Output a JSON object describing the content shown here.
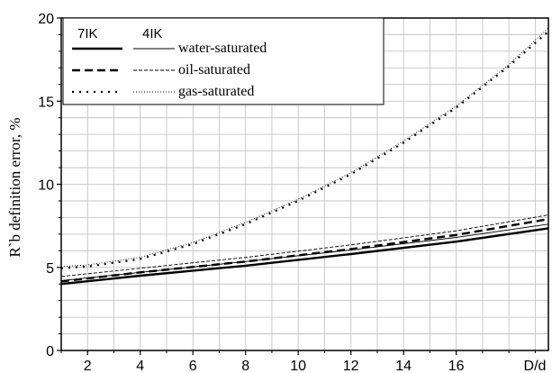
{
  "chart_data": {
    "type": "line",
    "title": "",
    "xlabel": "D/d",
    "ylabel": "R`b definition error, %",
    "xlim": [
      1,
      19.5
    ],
    "ylim": [
      0,
      20
    ],
    "xticks": [
      2,
      4,
      6,
      8,
      10,
      12,
      14,
      16
    ],
    "yticks": [
      0,
      5,
      10,
      15,
      20
    ],
    "grid": true,
    "legend": {
      "placement": "top-left",
      "headers": [
        "7IK",
        "4IK"
      ],
      "rows": [
        "water-saturated",
        "oil-saturated",
        "gas-saturated"
      ]
    },
    "series": [
      {
        "name": "water-saturated (7IK)",
        "tool": "7IK",
        "medium": "water",
        "style": "solid-thick",
        "x": [
          1,
          4,
          8,
          12,
          16,
          19.5
        ],
        "y": [
          4.0,
          4.5,
          5.1,
          5.8,
          6.55,
          7.35
        ]
      },
      {
        "name": "water-saturated (4IK)",
        "tool": "4IK",
        "medium": "water",
        "style": "solid-thin",
        "x": [
          1,
          4,
          8,
          12,
          16,
          19.5
        ],
        "y": [
          4.2,
          4.7,
          5.35,
          6.05,
          6.8,
          7.6
        ]
      },
      {
        "name": "oil-saturated (7IK)",
        "tool": "7IK",
        "medium": "oil",
        "style": "dashed-thick",
        "x": [
          1,
          4,
          8,
          12,
          16,
          19.5
        ],
        "y": [
          4.15,
          4.7,
          5.35,
          6.1,
          6.95,
          7.9
        ]
      },
      {
        "name": "oil-saturated (4IK)",
        "tool": "4IK",
        "medium": "oil",
        "style": "dashed-thin",
        "x": [
          1,
          4,
          8,
          12,
          16,
          19.5
        ],
        "y": [
          4.45,
          4.95,
          5.6,
          6.35,
          7.2,
          8.15
        ]
      },
      {
        "name": "gas-saturated (7IK)",
        "tool": "7IK",
        "medium": "gas",
        "style": "dotted-thick",
        "x": [
          1,
          2,
          4,
          6,
          8,
          10,
          12,
          14,
          16,
          18,
          19.5
        ],
        "y": [
          4.95,
          5.05,
          5.5,
          6.4,
          7.6,
          9.0,
          10.6,
          12.5,
          14.6,
          17.1,
          19.2
        ]
      },
      {
        "name": "gas-saturated (4IK)",
        "tool": "4IK",
        "medium": "gas",
        "style": "dotted-thin",
        "x": [
          1,
          2,
          4,
          6,
          8,
          10,
          12,
          14,
          16,
          18,
          19.5
        ],
        "y": [
          5.05,
          5.15,
          5.6,
          6.5,
          7.7,
          9.1,
          10.7,
          12.6,
          14.7,
          17.2,
          19.4
        ]
      }
    ]
  }
}
